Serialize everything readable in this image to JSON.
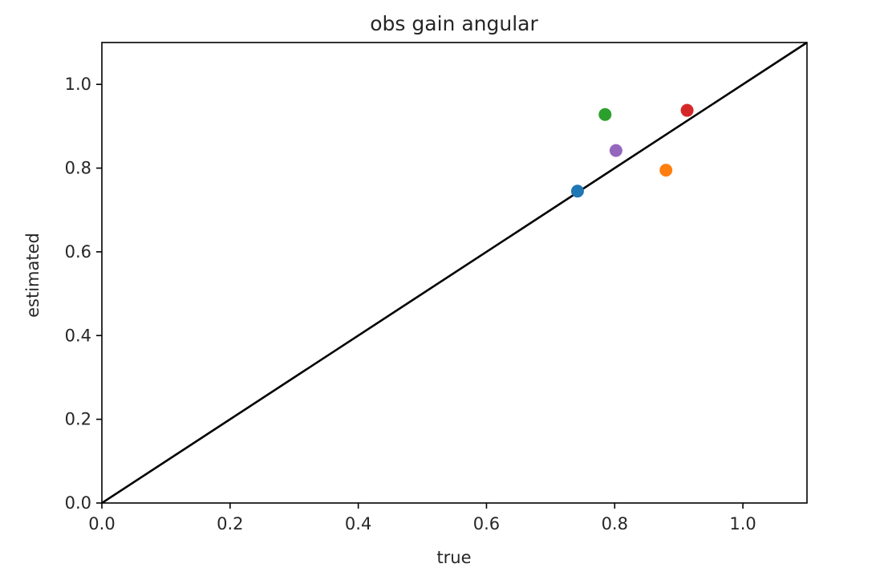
{
  "chart_data": {
    "type": "scatter",
    "title": "obs gain angular",
    "xlabel": "true",
    "ylabel": "estimated",
    "xlim": [
      0,
      1.1
    ],
    "ylim": [
      0,
      1.1
    ],
    "xticks": [
      "0.0",
      "0.2",
      "0.4",
      "0.6",
      "0.8",
      "1.0"
    ],
    "yticks": [
      "0.0",
      "0.2",
      "0.4",
      "0.6",
      "0.8",
      "1.0"
    ],
    "grid": false,
    "reference_line": {
      "from": [
        0,
        0
      ],
      "to": [
        1.1,
        1.1
      ],
      "color": "#000000"
    },
    "points": [
      {
        "x": 0.742,
        "y": 0.745,
        "color": "#1f77b4"
      },
      {
        "x": 0.88,
        "y": 0.795,
        "color": "#ff7f0e"
      },
      {
        "x": 0.785,
        "y": 0.928,
        "color": "#2ca02c"
      },
      {
        "x": 0.913,
        "y": 0.938,
        "color": "#d62728"
      },
      {
        "x": 0.802,
        "y": 0.842,
        "color": "#9467bd"
      }
    ]
  }
}
